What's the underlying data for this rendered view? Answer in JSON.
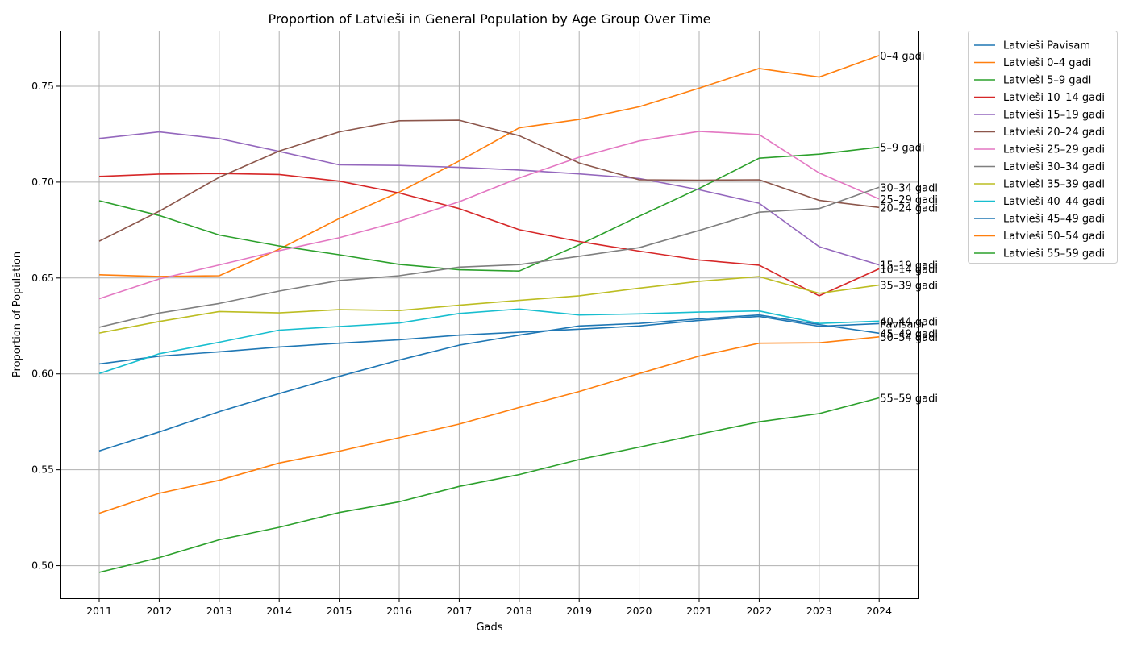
{
  "chart_data": {
    "type": "line",
    "title": "Proportion of Latvieši in General Population by Age Group Over Time",
    "xlabel": "Gads",
    "ylabel": "Proportion of Population",
    "x": [
      "2011",
      "2012",
      "2013",
      "2014",
      "2015",
      "2016",
      "2017",
      "2018",
      "2019",
      "2020",
      "2021",
      "2022",
      "2023",
      "2024"
    ],
    "ylim": [
      0.483,
      0.779
    ],
    "yticks": [
      "0.50",
      "0.55",
      "0.60",
      "0.65",
      "0.70",
      "0.75"
    ],
    "grid": true,
    "legend_position": "outside-top-right",
    "series": [
      {
        "name": "Latvieši Pavisam",
        "end_label": "Pavisam",
        "color": "#1f77b4",
        "values": [
          0.6052,
          0.6092,
          0.6115,
          0.614,
          0.616,
          0.6178,
          0.6202,
          0.6217,
          0.6233,
          0.625,
          0.6279,
          0.63,
          0.6248,
          0.6262
        ]
      },
      {
        "name": "Latvieši 0–4 gadi",
        "end_label": "0–4 gadi",
        "color": "#ff7f0e",
        "values": [
          0.6517,
          0.6508,
          0.6512,
          0.665,
          0.681,
          0.6948,
          0.711,
          0.7283,
          0.7327,
          0.7393,
          0.749,
          0.7593,
          0.7548,
          0.766
        ]
      },
      {
        "name": "Latvieši 5–9 gadi",
        "end_label": "5–9 gadi",
        "color": "#2ca02c",
        "values": [
          0.6903,
          0.6826,
          0.6724,
          0.6667,
          0.6621,
          0.6571,
          0.6543,
          0.6536,
          0.6673,
          0.6822,
          0.6967,
          0.7125,
          0.7146,
          0.7182
        ]
      },
      {
        "name": "Latvieši 10–14 gadi",
        "end_label": "10–14 gadi",
        "color": "#d62728",
        "values": [
          0.703,
          0.7042,
          0.7045,
          0.704,
          0.7005,
          0.6943,
          0.6862,
          0.6752,
          0.669,
          0.664,
          0.6594,
          0.6567,
          0.6407,
          0.6548
        ]
      },
      {
        "name": "Latvieši 15–19 gadi",
        "end_label": "15–19 gadi",
        "color": "#9467bd",
        "values": [
          0.7228,
          0.7262,
          0.7227,
          0.716,
          0.709,
          0.7087,
          0.7077,
          0.7063,
          0.7043,
          0.7019,
          0.696,
          0.689,
          0.6663,
          0.6568
        ]
      },
      {
        "name": "Latvieši 20–24 gadi",
        "end_label": "20–24 gadi",
        "color": "#8c564b",
        "values": [
          0.6692,
          0.6848,
          0.7025,
          0.7162,
          0.7262,
          0.732,
          0.7323,
          0.7242,
          0.71,
          0.7012,
          0.701,
          0.7012,
          0.6905,
          0.6868
        ]
      },
      {
        "name": "Latvieši 25–29 gadi",
        "end_label": "25–29 gadi",
        "color": "#e377c2",
        "values": [
          0.6392,
          0.6495,
          0.6568,
          0.6642,
          0.671,
          0.6795,
          0.6898,
          0.7022,
          0.713,
          0.7215,
          0.7265,
          0.7248,
          0.7048,
          0.6912
        ]
      },
      {
        "name": "Latvieši 30–34 gadi",
        "end_label": "30–34 gadi",
        "color": "#7f7f7f",
        "values": [
          0.6243,
          0.6317,
          0.6367,
          0.6432,
          0.6487,
          0.6512,
          0.6557,
          0.657,
          0.6613,
          0.6658,
          0.6748,
          0.6843,
          0.6862,
          0.6973
        ]
      },
      {
        "name": "Latvieši 35–39 gadi",
        "end_label": "35–39 gadi",
        "color": "#bcbd22",
        "values": [
          0.6213,
          0.6273,
          0.6325,
          0.6318,
          0.6335,
          0.633,
          0.6358,
          0.6383,
          0.6407,
          0.6447,
          0.6483,
          0.6507,
          0.642,
          0.6463
        ]
      },
      {
        "name": "Latvieši 40–44 gadi",
        "end_label": "40–44 gadi",
        "color": "#17becf",
        "values": [
          0.6002,
          0.6105,
          0.6165,
          0.6228,
          0.6247,
          0.6265,
          0.6315,
          0.6338,
          0.6307,
          0.6313,
          0.6322,
          0.6328,
          0.6263,
          0.6275
        ]
      },
      {
        "name": "Latvieši 45–49 gadi",
        "end_label": "45–49 gadi",
        "color": "#1f77b4",
        "values": [
          0.5598,
          0.5697,
          0.5803,
          0.5897,
          0.5987,
          0.6072,
          0.615,
          0.6202,
          0.625,
          0.6263,
          0.6287,
          0.6307,
          0.6257,
          0.6212
        ]
      },
      {
        "name": "Latvieši 50–54 gadi",
        "end_label": "50–54 gadi",
        "color": "#ff7f0e",
        "values": [
          0.5273,
          0.5377,
          0.5445,
          0.5535,
          0.5597,
          0.5667,
          0.5738,
          0.5825,
          0.5908,
          0.6002,
          0.6093,
          0.616,
          0.6162,
          0.6193
        ]
      },
      {
        "name": "Latvieši 55–59 gadi",
        "end_label": "55–59 gadi",
        "color": "#2ca02c",
        "values": [
          0.4965,
          0.5042,
          0.5135,
          0.52,
          0.5277,
          0.5333,
          0.5413,
          0.5475,
          0.5553,
          0.5618,
          0.5685,
          0.575,
          0.5793,
          0.5875
        ]
      }
    ]
  }
}
